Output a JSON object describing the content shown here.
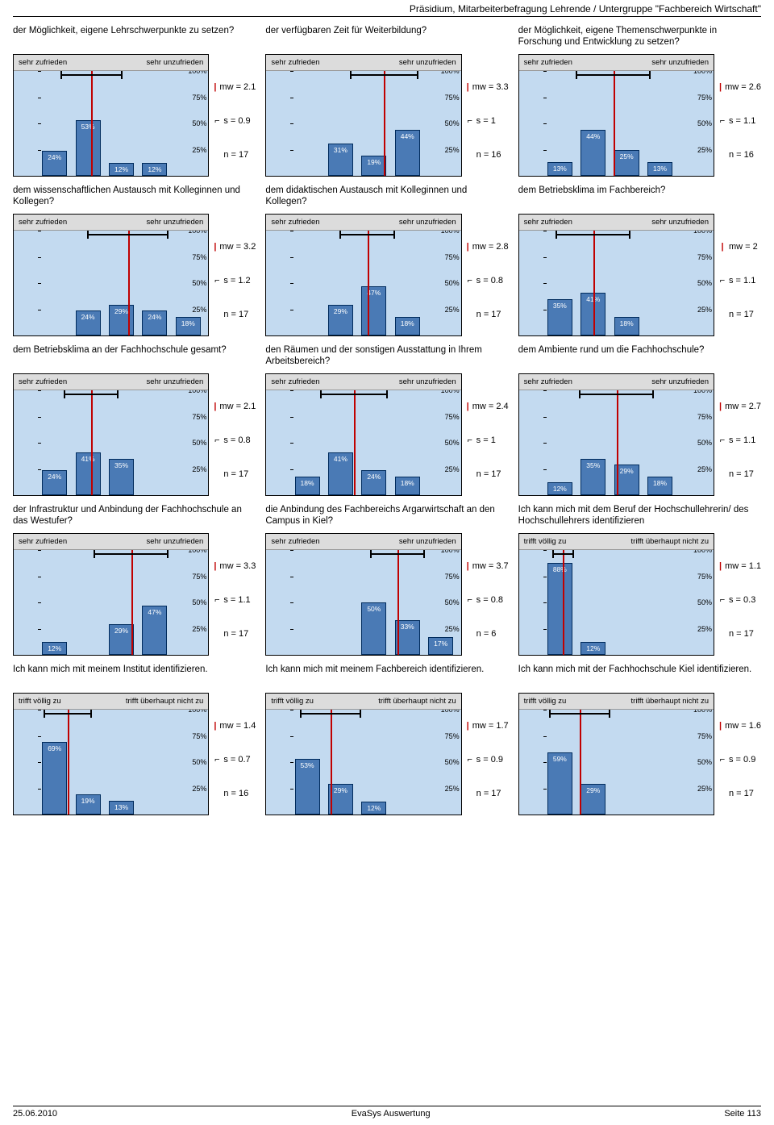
{
  "header": "Präsidium, Mitarbeiterbefragung Lehrende / Untergruppe \"Fachbereich Wirtschaft\"",
  "footer": {
    "date": "25.06.2010",
    "center": "EvaSys Auswertung",
    "page": "Seite 113"
  },
  "yticks": [
    100,
    75,
    50,
    25
  ],
  "scale_labels": {
    "satisfied": {
      "left": "sehr zufrieden",
      "right": "sehr unzufrieden"
    },
    "agree": {
      "left": "trifft völlig zu",
      "right": "trifft überhaupt nicht zu"
    }
  },
  "colors": {
    "bar_fill": "#4a7ab5",
    "bar_border": "#002b5c",
    "mean_line": "#c00000",
    "chart_bg": "#c3daf0",
    "label_bg": "#dcdcdc"
  },
  "charts": [
    {
      "q": "der Möglichkeit, eigene Lehrschwerpunkte zu setzen?",
      "scale": "satisfied",
      "values": [
        24,
        53,
        12,
        12,
        0
      ],
      "mw": "2.1",
      "s": "0.9",
      "n": "17"
    },
    {
      "q": "der verfügbaren Zeit für Weiterbildung?",
      "scale": "satisfied",
      "values": [
        0,
        31,
        19,
        44,
        0
      ],
      "mw": "3.3",
      "s": "1",
      "n": "16"
    },
    {
      "q": "der Möglichkeit, eigene Themenschwerpunkte in Forschung und Entwicklung zu setzen?",
      "scale": "satisfied",
      "values": [
        13,
        44,
        25,
        13,
        0
      ],
      "mw": "2.6",
      "s": "1.1",
      "n": "16"
    },
    {
      "q": "dem wissenschaftlichen Austausch mit Kolleginnen und Kollegen?",
      "scale": "satisfied",
      "values": [
        0,
        24,
        29,
        24,
        18
      ],
      "mw": "3.2",
      "s": "1.2",
      "n": "17"
    },
    {
      "q": "dem didaktischen Austausch mit Kolleginnen und Kollegen?",
      "scale": "satisfied",
      "values": [
        0,
        29,
        47,
        18,
        0
      ],
      "mw": "2.8",
      "s": "0.8",
      "n": "17"
    },
    {
      "q": "dem Betriebsklima im Fachbereich?",
      "scale": "satisfied",
      "values": [
        35,
        41,
        18,
        0,
        0
      ],
      "mw": "2",
      "s": "1.1",
      "n": "17"
    },
    {
      "q": "dem Betriebsklima an der Fachhochschule gesamt?",
      "scale": "satisfied",
      "values": [
        24,
        41,
        35,
        0,
        0
      ],
      "mw": "2.1",
      "s": "0.8",
      "n": "17"
    },
    {
      "q": "den Räumen und der sonstigen Ausstattung in Ihrem Arbeitsbereich?",
      "scale": "satisfied",
      "values": [
        18,
        41,
        24,
        18,
        0
      ],
      "mw": "2.4",
      "s": "1",
      "n": "17"
    },
    {
      "q": "dem Ambiente rund um die Fachhochschule?",
      "scale": "satisfied",
      "values": [
        12,
        35,
        29,
        18,
        0
      ],
      "mw": "2.7",
      "s": "1.1",
      "n": "17"
    },
    {
      "q": "der Infrastruktur und Anbindung der Fachhochschule an das  Westufer?",
      "scale": "satisfied",
      "values": [
        12,
        0,
        29,
        47,
        0
      ],
      "mw": "3.3",
      "s": "1.1",
      "n": "17"
    },
    {
      "q": "die Anbindung des Fachbereichs Argarwirtschaft an den Campus in Kiel?",
      "scale": "satisfied",
      "values": [
        0,
        0,
        50,
        33,
        17
      ],
      "mw": "3.7",
      "s": "0.8",
      "n": "6"
    },
    {
      "q": "Ich kann mich mit dem Beruf der Hochschullehrerin/ des Hochschullehrers identifizieren",
      "scale": "agree",
      "values": [
        88,
        12,
        0,
        0,
        0
      ],
      "mw": "1.1",
      "s": "0.3",
      "n": "17"
    },
    {
      "q": "Ich kann mich mit meinem Institut identifizieren.",
      "scale": "agree",
      "values": [
        69,
        19,
        13,
        0,
        0
      ],
      "mw": "1.4",
      "s": "0.7",
      "n": "16"
    },
    {
      "q": "Ich kann mich mit meinem Fachbereich identifizieren.",
      "scale": "agree",
      "values": [
        53,
        29,
        12,
        0,
        0
      ],
      "mw": "1.7",
      "s": "0.9",
      "n": "17"
    },
    {
      "q": "Ich kann mich mit der Fachhochschule Kiel identifizieren.",
      "scale": "agree",
      "values": [
        59,
        29,
        0,
        0,
        0
      ],
      "mw": "1.6",
      "s": "0.9",
      "n": "17"
    }
  ]
}
